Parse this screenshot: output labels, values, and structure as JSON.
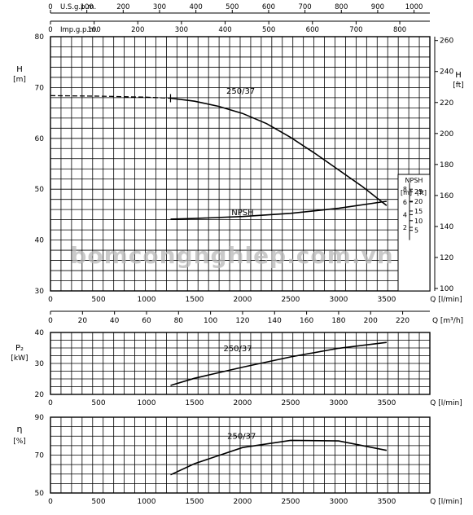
{
  "chart_data": [
    {
      "type": "line",
      "name": "head",
      "top_axis_1": {
        "label": "U.S.g.p.m.",
        "ticks": [
          0,
          100,
          200,
          300,
          400,
          500,
          600,
          700,
          800,
          900,
          1000
        ]
      },
      "top_axis_2": {
        "label": "Imp.g.p.m.",
        "ticks": [
          0,
          100,
          200,
          300,
          400,
          500,
          600,
          700,
          800
        ]
      },
      "left_axis": {
        "label_top": "H",
        "label_bottom": "[m]",
        "ticks": [
          30,
          40,
          50,
          60,
          70,
          80
        ],
        "ylim": [
          30,
          80
        ]
      },
      "right_axis": {
        "label_top": "H",
        "label_bottom": "[ft]",
        "ticks": [
          100,
          120,
          140,
          160,
          180,
          200,
          220,
          240,
          260
        ]
      },
      "x_axis": {
        "label": "Q  [l/min]",
        "ticks": [
          0,
          500,
          1000,
          1500,
          2000,
          2500,
          3000,
          3500
        ],
        "xlim": [
          0,
          3950
        ]
      },
      "x_axis_2": {
        "label": "Q  [m³/h]",
        "ticks": [
          0,
          20,
          40,
          60,
          80,
          100,
          120,
          140,
          160,
          180,
          200,
          220
        ]
      },
      "series": [
        {
          "name": "250/37",
          "x": [
            0,
            500,
            1000,
            1250,
            1500,
            1750,
            2000,
            2250,
            2500,
            2750,
            3000,
            3250,
            3500
          ],
          "y": [
            68.4,
            68.3,
            68.1,
            67.9,
            67.3,
            66.3,
            64.9,
            62.9,
            60.2,
            57.1,
            53.8,
            50.5,
            46.8
          ]
        },
        {
          "name": "NPSH",
          "x": [
            1250,
            1500,
            2000,
            2500,
            3000,
            3500
          ],
          "y": [
            3.3,
            3.4,
            3.7,
            4.2,
            5.0,
            6.1
          ]
        }
      ],
      "npsh_axis": {
        "title": "NPSH",
        "unit_m": "[m]",
        "unit_ft": "[ft]",
        "ticks_m": [
          2,
          4,
          6,
          8
        ],
        "ticks_ft": [
          5,
          10,
          15,
          20,
          25
        ]
      }
    },
    {
      "type": "line",
      "name": "power",
      "y_axis": {
        "label_top": "P₂",
        "label_bottom": "[kW]",
        "ticks": [
          20,
          30,
          40
        ],
        "ylim": [
          20,
          40
        ]
      },
      "x_axis": {
        "label": "Q  [l/min]",
        "ticks": [
          0,
          500,
          1000,
          1500,
          2000,
          2500,
          3000,
          3500
        ],
        "xlim": [
          0,
          3950
        ]
      },
      "series": [
        {
          "name": "250/37",
          "x": [
            1250,
            1500,
            2000,
            2500,
            3000,
            3500
          ],
          "y": [
            22.9,
            25.2,
            28.8,
            32.1,
            34.9,
            36.8
          ]
        }
      ]
    },
    {
      "type": "line",
      "name": "efficiency",
      "y_axis": {
        "label_top": "η",
        "label_bottom": "[%]",
        "ticks": [
          50,
          70,
          90
        ],
        "ylim": [
          50,
          90
        ]
      },
      "x_axis": {
        "label": "Q  [l/min]",
        "ticks": [
          0,
          500,
          1000,
          1500,
          2000,
          2500,
          3000,
          3500
        ],
        "xlim": [
          0,
          3950
        ]
      },
      "series": [
        {
          "name": "250/37",
          "x": [
            1250,
            1500,
            2000,
            2500,
            3000,
            3500
          ],
          "y": [
            59.6,
            65.5,
            74.0,
            77.8,
            77.5,
            72.5
          ]
        }
      ]
    }
  ],
  "watermark": "bomcongnghiep.com.vn"
}
